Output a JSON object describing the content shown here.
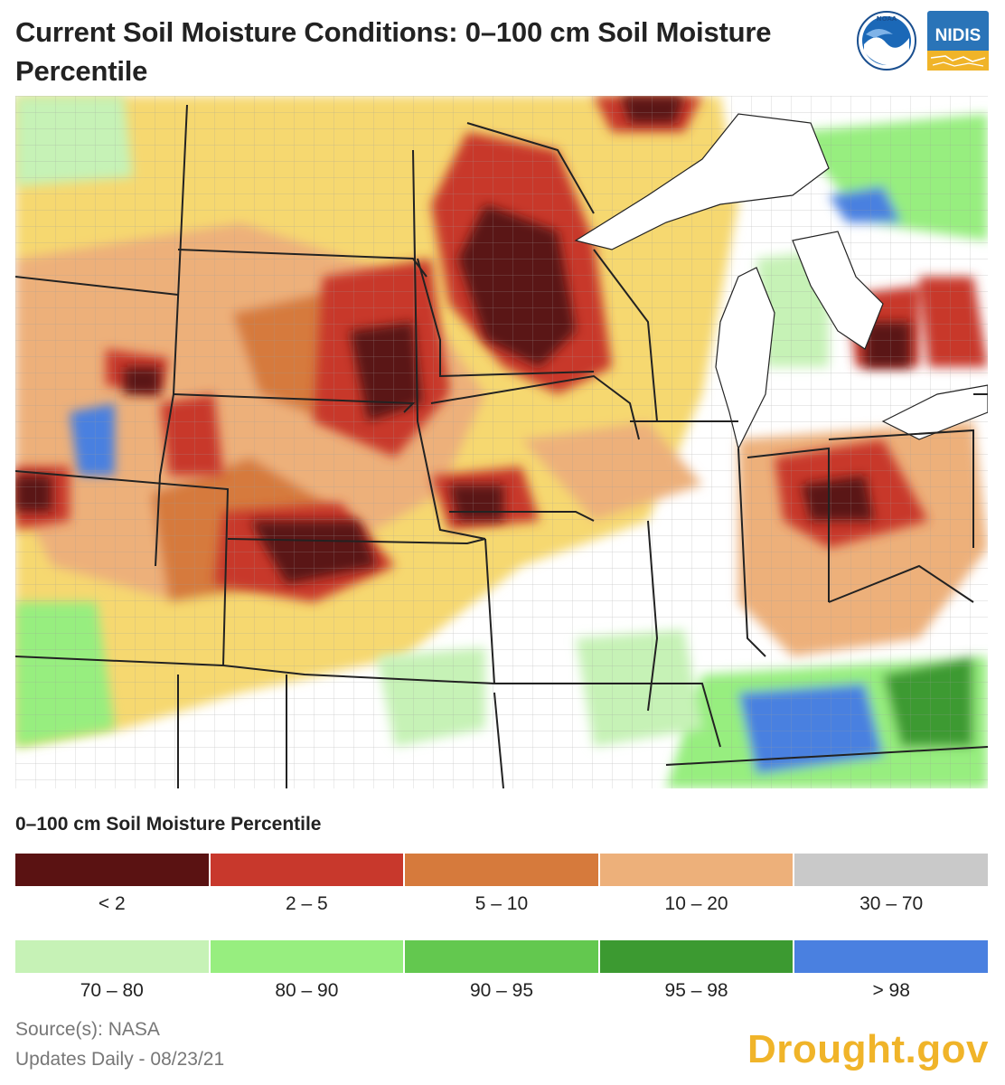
{
  "header": {
    "title": "Current Soil Moisture Conditions: 0–100 cm Soil Moisture Percentile",
    "logos": {
      "noaa": "NOAA",
      "nidis": "NIDIS"
    }
  },
  "colors": {
    "lt2": "#5a1212",
    "p2_5": "#c8382c",
    "p5_10": "#d67a3c",
    "p10_20": "#edb07a",
    "p30_70": "#c9c9c9",
    "p70_80": "#c6f2b6",
    "p80_90": "#97ee7f",
    "p90_95": "#63c84f",
    "p95_98": "#3c9a31",
    "gt98": "#4a80e0",
    "brand": "#f0b429"
  },
  "legend": {
    "title": "0–100 cm Soil Moisture Percentile",
    "rows": [
      [
        {
          "label": "< 2",
          "color": "#5a1212"
        },
        {
          "label": "2 – 5",
          "color": "#c8382c"
        },
        {
          "label": "5 – 10",
          "color": "#d67a3c"
        },
        {
          "label": "10 – 20",
          "color": "#edb07a"
        },
        {
          "label": "30 – 70",
          "color": "#c9c9c9"
        }
      ],
      [
        {
          "label": "70 – 80",
          "color": "#c6f2b6"
        },
        {
          "label": "80 – 90",
          "color": "#97ee7f"
        },
        {
          "label": "90 – 95",
          "color": "#63c84f"
        },
        {
          "label": "95 – 98",
          "color": "#3c9a31"
        },
        {
          "label": "> 98",
          "color": "#4a80e0"
        }
      ]
    ]
  },
  "footer": {
    "source": "Source(s): NASA",
    "updates": "Updates Daily - 08/23/21",
    "brand": "Drought.gov"
  }
}
